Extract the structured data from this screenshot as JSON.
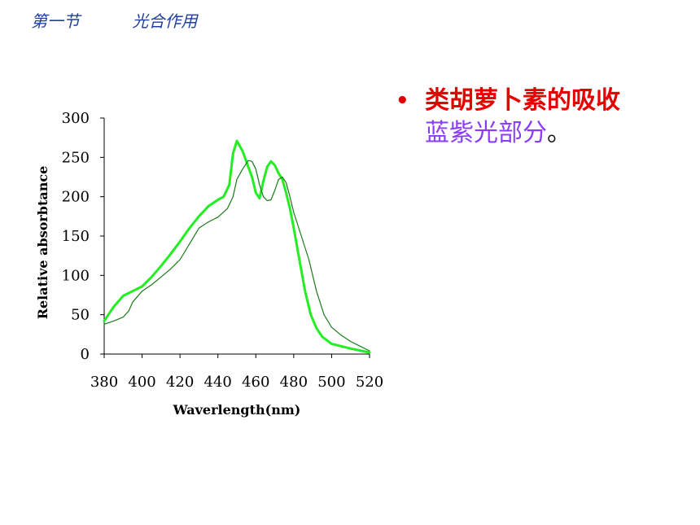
{
  "header": {
    "section": "第一节",
    "topic": "光合作用"
  },
  "bullet": {
    "marker": "•",
    "part1": "类胡萝卜素的吸收",
    "part2": "蓝紫光部分",
    "part3": "。"
  },
  "colors": {
    "header": "#1f3f9f",
    "bullet_red": "#e60000",
    "bullet_purple": "#8a3dff",
    "series_bright": "#22ee22",
    "series_dark": "#1a7a1a"
  },
  "chart_data": {
    "type": "line",
    "xlabel": "Waverlength(nm)",
    "ylabel": "Relative absorbtance",
    "xlim": [
      380,
      520
    ],
    "ylim": [
      0,
      300
    ],
    "x_ticks": [
      380,
      400,
      420,
      440,
      460,
      480,
      500,
      520
    ],
    "y_ticks": [
      0,
      50,
      100,
      150,
      200,
      250,
      300
    ],
    "grid": false,
    "series": [
      {
        "color": "#22ee22",
        "points": [
          [
            380,
            42
          ],
          [
            385,
            60
          ],
          [
            390,
            74
          ],
          [
            395,
            80
          ],
          [
            400,
            86
          ],
          [
            405,
            98
          ],
          [
            410,
            112
          ],
          [
            415,
            127
          ],
          [
            420,
            143
          ],
          [
            425,
            160
          ],
          [
            430,
            175
          ],
          [
            435,
            188
          ],
          [
            440,
            196
          ],
          [
            443,
            200
          ],
          [
            446,
            215
          ],
          [
            448,
            255
          ],
          [
            450,
            271
          ],
          [
            453,
            258
          ],
          [
            456,
            238
          ],
          [
            458,
            225
          ],
          [
            460,
            205
          ],
          [
            462,
            198
          ],
          [
            464,
            220
          ],
          [
            466,
            238
          ],
          [
            468,
            245
          ],
          [
            470,
            240
          ],
          [
            472,
            230
          ],
          [
            474,
            222
          ],
          [
            476,
            205
          ],
          [
            478,
            185
          ],
          [
            480,
            160
          ],
          [
            483,
            120
          ],
          [
            486,
            80
          ],
          [
            489,
            50
          ],
          [
            492,
            33
          ],
          [
            495,
            22
          ],
          [
            500,
            13
          ],
          [
            510,
            7
          ],
          [
            520,
            2
          ]
        ]
      },
      {
        "color": "#1a7a1a",
        "points": [
          [
            380,
            38
          ],
          [
            385,
            42
          ],
          [
            390,
            47
          ],
          [
            393,
            55
          ],
          [
            395,
            66
          ],
          [
            400,
            80
          ],
          [
            405,
            88
          ],
          [
            410,
            98
          ],
          [
            415,
            108
          ],
          [
            420,
            120
          ],
          [
            425,
            140
          ],
          [
            430,
            160
          ],
          [
            435,
            168
          ],
          [
            440,
            174
          ],
          [
            445,
            185
          ],
          [
            448,
            200
          ],
          [
            450,
            222
          ],
          [
            453,
            235
          ],
          [
            456,
            246
          ],
          [
            458,
            245
          ],
          [
            460,
            235
          ],
          [
            462,
            215
          ],
          [
            464,
            200
          ],
          [
            466,
            195
          ],
          [
            468,
            196
          ],
          [
            470,
            208
          ],
          [
            472,
            222
          ],
          [
            474,
            225
          ],
          [
            476,
            218
          ],
          [
            478,
            200
          ],
          [
            480,
            180
          ],
          [
            484,
            150
          ],
          [
            488,
            120
          ],
          [
            492,
            80
          ],
          [
            496,
            50
          ],
          [
            500,
            34
          ],
          [
            505,
            24
          ],
          [
            510,
            16
          ],
          [
            515,
            10
          ],
          [
            520,
            4
          ]
        ]
      }
    ]
  }
}
